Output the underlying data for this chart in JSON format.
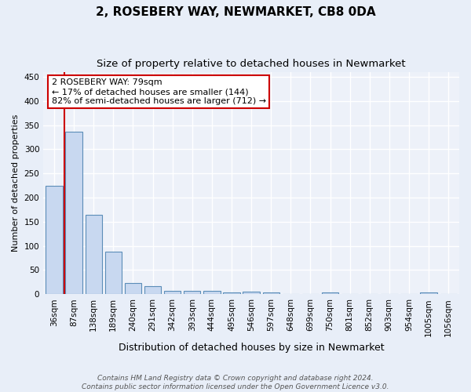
{
  "title": "2, ROSEBERY WAY, NEWMARKET, CB8 0DA",
  "subtitle": "Size of property relative to detached houses in Newmarket",
  "xlabel": "Distribution of detached houses by size in Newmarket",
  "ylabel": "Number of detached properties",
  "bar_color": "#c8d8f0",
  "bar_edge_color": "#5b8db8",
  "categories": [
    "36sqm",
    "87sqm",
    "138sqm",
    "189sqm",
    "240sqm",
    "291sqm",
    "342sqm",
    "393sqm",
    "444sqm",
    "495sqm",
    "546sqm",
    "597sqm",
    "648sqm",
    "699sqm",
    "750sqm",
    "801sqm",
    "852sqm",
    "903sqm",
    "954sqm",
    "1005sqm",
    "1056sqm"
  ],
  "values": [
    225,
    336,
    165,
    88,
    23,
    16,
    6,
    7,
    7,
    4,
    5,
    4,
    0,
    0,
    4,
    0,
    0,
    0,
    0,
    4,
    0
  ],
  "ylim": [
    0,
    460
  ],
  "yticks": [
    0,
    50,
    100,
    150,
    200,
    250,
    300,
    350,
    400,
    450
  ],
  "vline_x_index": 0.5,
  "vline_color": "#cc0000",
  "annotation_text": "2 ROSEBERY WAY: 79sqm\n← 17% of detached houses are smaller (144)\n82% of semi-detached houses are larger (712) →",
  "annotation_box_color": "#ffffff",
  "annotation_border_color": "#cc0000",
  "footer_text": "Contains HM Land Registry data © Crown copyright and database right 2024.\nContains public sector information licensed under the Open Government Licence v3.0.",
  "bg_color": "#e8eef8",
  "plot_bg_color": "#edf1f9",
  "grid_color": "#ffffff",
  "title_fontsize": 11,
  "subtitle_fontsize": 9.5,
  "xlabel_fontsize": 9,
  "ylabel_fontsize": 8,
  "tick_fontsize": 7.5,
  "footer_fontsize": 6.5
}
